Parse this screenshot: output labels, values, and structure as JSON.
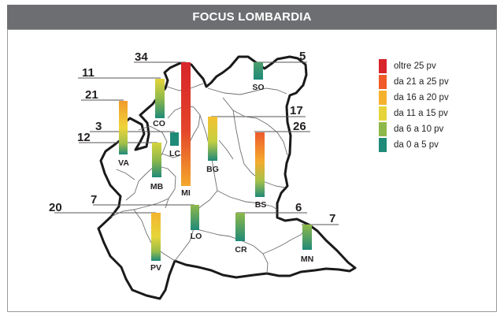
{
  "header": {
    "title": "FOCUS LOMBARDIA"
  },
  "legend": {
    "items": [
      {
        "label": "oltre 25 pv",
        "color": "#d7242a"
      },
      {
        "label": "da 21 a 25 pv",
        "color": "#f05a28"
      },
      {
        "label": "da 16 a 20 pv",
        "color": "#f5b12e"
      },
      {
        "label": "da 11 a 15 pv",
        "color": "#e6d43a"
      },
      {
        "label": "da 6 a 10 pv",
        "color": "#8fb84a"
      },
      {
        "label": "da 0 a 5 pv",
        "color": "#1f8a78"
      }
    ]
  },
  "provinces": [
    {
      "code": "SO",
      "value": "5"
    },
    {
      "code": "CO",
      "value": "11"
    },
    {
      "code": "MI",
      "value": "34"
    },
    {
      "code": "VA",
      "value": "21"
    },
    {
      "code": "LC",
      "value": "3"
    },
    {
      "code": "MB",
      "value": "12"
    },
    {
      "code": "BG",
      "value": "17"
    },
    {
      "code": "BS",
      "value": "26"
    },
    {
      "code": "PV",
      "value": "20"
    },
    {
      "code": "LO",
      "value": "7"
    },
    {
      "code": "CR",
      "value": "6"
    },
    {
      "code": "MN",
      "value": "7"
    }
  ]
}
